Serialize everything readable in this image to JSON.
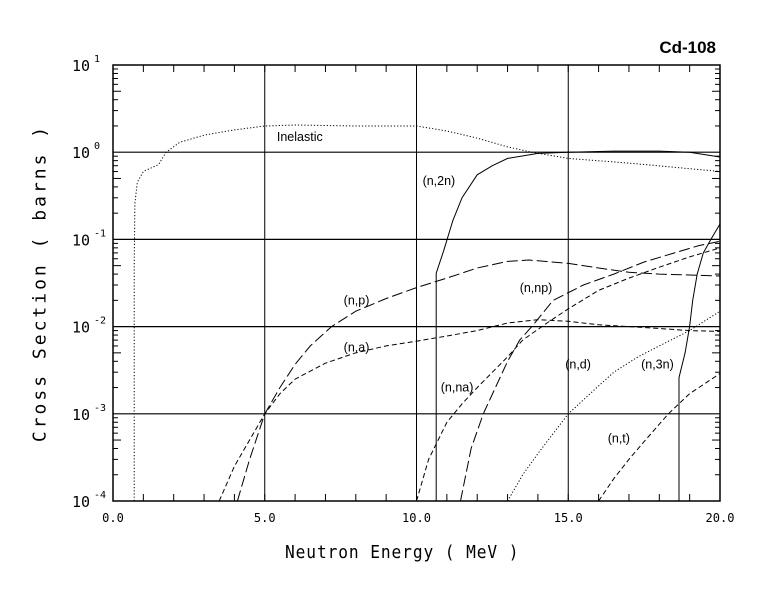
{
  "chart_data": {
    "type": "line",
    "title": "Cd-108",
    "xlabel": "Neutron Energy ( MeV )",
    "ylabel": "Cross Section ( barns )",
    "xlim": [
      0,
      20
    ],
    "ylim": [
      0.0001,
      10
    ],
    "yscale": "log",
    "grid": true,
    "x_ticks": [
      "0.0",
      "5.0",
      "10.0",
      "15.0",
      "20.0"
    ],
    "y_ticks": [
      {
        "base": "10",
        "exp": "1"
      },
      {
        "base": "10",
        "exp": "0"
      },
      {
        "base": "10",
        "exp": "-1"
      },
      {
        "base": "10",
        "exp": "-2"
      },
      {
        "base": "10",
        "exp": "-3"
      },
      {
        "base": "10",
        "exp": "-4"
      }
    ],
    "series": [
      {
        "name": "Inelastic",
        "style": "dotted",
        "label_at": [
          5.4,
          1.35
        ],
        "points": [
          [
            0.7,
            0.0001
          ],
          [
            0.7,
            0.05
          ],
          [
            0.72,
            0.26
          ],
          [
            0.8,
            0.45
          ],
          [
            1.0,
            0.6
          ],
          [
            1.5,
            0.72
          ],
          [
            1.75,
            1.0
          ],
          [
            2.2,
            1.3
          ],
          [
            3,
            1.57
          ],
          [
            4,
            1.8
          ],
          [
            5,
            2.0
          ],
          [
            6,
            2.05
          ],
          [
            8,
            2.0
          ],
          [
            10,
            2.0
          ],
          [
            11,
            1.75
          ],
          [
            12,
            1.45
          ],
          [
            13,
            1.15
          ],
          [
            13.8,
            1.0
          ],
          [
            15,
            0.85
          ],
          [
            17,
            0.75
          ],
          [
            20,
            0.6
          ]
        ]
      },
      {
        "name": "(n,2n)",
        "style": "solid",
        "label_at": [
          10.2,
          0.42
        ],
        "points": [
          [
            10.65,
            0.0001
          ],
          [
            10.65,
            0.041
          ],
          [
            10.9,
            0.075
          ],
          [
            11.2,
            0.165
          ],
          [
            11.5,
            0.3
          ],
          [
            12,
            0.55
          ],
          [
            12.5,
            0.7
          ],
          [
            13,
            0.85
          ],
          [
            14,
            0.97
          ],
          [
            15,
            1.0
          ],
          [
            16.5,
            1.03
          ],
          [
            18,
            1.03
          ],
          [
            19,
            1.0
          ],
          [
            20,
            0.88
          ]
        ]
      },
      {
        "name": "(n,p)",
        "style": "longdash",
        "label_at": [
          7.6,
          0.018
        ],
        "points": [
          [
            4.1,
            0.0001
          ],
          [
            4.5,
            0.0003
          ],
          [
            5,
            0.001
          ],
          [
            5.5,
            0.002
          ],
          [
            6,
            0.0037
          ],
          [
            6.5,
            0.006
          ],
          [
            7.2,
            0.01
          ],
          [
            8,
            0.015
          ],
          [
            9,
            0.021
          ],
          [
            10,
            0.028
          ],
          [
            11,
            0.036
          ],
          [
            12,
            0.047
          ],
          [
            13,
            0.056
          ],
          [
            13.7,
            0.058
          ],
          [
            15,
            0.053
          ],
          [
            16,
            0.047
          ],
          [
            17,
            0.042
          ],
          [
            18,
            0.04
          ],
          [
            20,
            0.038
          ]
        ]
      },
      {
        "name": "(n,a)",
        "style": "dashed",
        "label_at": [
          7.6,
          0.0052
        ],
        "points": [
          [
            3.5,
            0.0001
          ],
          [
            4,
            0.00025
          ],
          [
            4.5,
            0.0005
          ],
          [
            5,
            0.001
          ],
          [
            5.5,
            0.0017
          ],
          [
            6,
            0.0025
          ],
          [
            7,
            0.0038
          ],
          [
            8,
            0.005
          ],
          [
            9,
            0.006
          ],
          [
            10,
            0.0068
          ],
          [
            11,
            0.0078
          ],
          [
            12,
            0.009
          ],
          [
            13,
            0.011
          ],
          [
            14,
            0.012
          ],
          [
            15,
            0.0115
          ],
          [
            16,
            0.0105
          ],
          [
            17,
            0.01
          ],
          [
            18,
            0.0095
          ],
          [
            19,
            0.009
          ],
          [
            20,
            0.0088
          ]
        ]
      },
      {
        "name": "(n,na)",
        "style": "dashed",
        "label_at": [
          10.8,
          0.0018
        ],
        "points": [
          [
            10,
            0.0001
          ],
          [
            10.4,
            0.0003
          ],
          [
            11,
            0.0008
          ],
          [
            11.5,
            0.0013
          ],
          [
            12,
            0.002
          ],
          [
            12.5,
            0.003
          ],
          [
            13,
            0.0045
          ],
          [
            13.5,
            0.007
          ],
          [
            14.3,
            0.011
          ],
          [
            15,
            0.016
          ],
          [
            16,
            0.026
          ],
          [
            17,
            0.036
          ],
          [
            18,
            0.048
          ],
          [
            19,
            0.063
          ],
          [
            20,
            0.08
          ]
        ]
      },
      {
        "name": "(n,np)",
        "style": "longdash",
        "label_at": [
          13.4,
          0.025
        ],
        "points": [
          [
            11.45,
            0.0001
          ],
          [
            11.8,
            0.0004
          ],
          [
            12.2,
            0.001
          ],
          [
            12.6,
            0.002
          ],
          [
            13,
            0.004
          ],
          [
            13.4,
            0.007
          ],
          [
            13.8,
            0.01
          ],
          [
            14.5,
            0.02
          ],
          [
            15.5,
            0.03
          ],
          [
            16.5,
            0.04
          ],
          [
            17.5,
            0.055
          ],
          [
            18.5,
            0.07
          ],
          [
            19.3,
            0.085
          ],
          [
            20,
            0.095
          ]
        ]
      },
      {
        "name": "(n,d)",
        "style": "dotted",
        "label_at": [
          14.9,
          0.0033
        ],
        "points": [
          [
            13,
            0.0001
          ],
          [
            13.5,
            0.0002
          ],
          [
            14,
            0.00035
          ],
          [
            15,
            0.001
          ],
          [
            15.8,
            0.0018
          ],
          [
            16.5,
            0.003
          ],
          [
            17.3,
            0.0045
          ],
          [
            18,
            0.006
          ],
          [
            19,
            0.009
          ],
          [
            20,
            0.015
          ]
        ]
      },
      {
        "name": "(n,t)",
        "style": "dashed",
        "label_at": [
          16.3,
          0.00047
        ],
        "points": [
          [
            16,
            0.0001
          ],
          [
            16.5,
            0.00018
          ],
          [
            17,
            0.0003
          ],
          [
            17.5,
            0.00048
          ],
          [
            18.3,
            0.001
          ],
          [
            19,
            0.0017
          ],
          [
            20,
            0.0029
          ]
        ]
      },
      {
        "name": "(n,3n)",
        "style": "solid",
        "label_at": [
          17.4,
          0.0033
        ],
        "points": [
          [
            18.65,
            0.0001
          ],
          [
            18.65,
            0.0026
          ],
          [
            18.85,
            0.005
          ],
          [
            19,
            0.01
          ],
          [
            19.1,
            0.02
          ],
          [
            19.25,
            0.04
          ],
          [
            19.45,
            0.07
          ],
          [
            19.7,
            0.1
          ],
          [
            20,
            0.15
          ]
        ]
      }
    ]
  }
}
